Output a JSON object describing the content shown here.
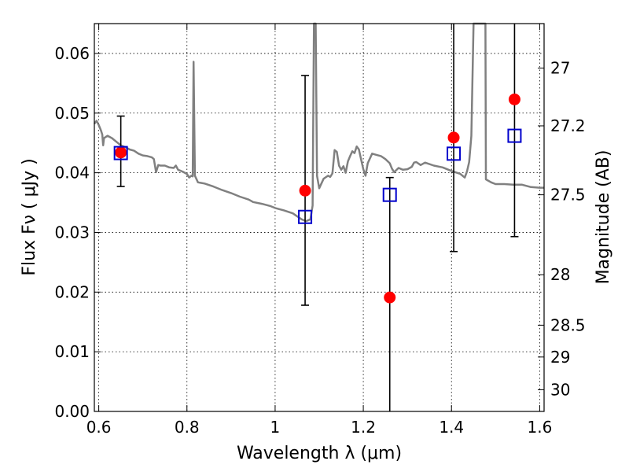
{
  "chart_data": {
    "type": "scatter",
    "xlabel": "Wavelength  λ (μm)",
    "ylabel": "Flux  Fν  ( μJy )",
    "y2label": "Magnitude (AB)",
    "xlim": [
      0.59,
      1.61
    ],
    "ylim": [
      0.0,
      0.065
    ],
    "grid": true,
    "x_ticks": [
      0.6,
      0.8,
      1.0,
      1.2,
      1.4,
      1.6
    ],
    "x_tick_labels": [
      "0.6",
      "0.8",
      "1",
      "1.2",
      "1.4",
      "1.6"
    ],
    "y_ticks": [
      0.0,
      0.01,
      0.02,
      0.03,
      0.04,
      0.05,
      0.06
    ],
    "y_tick_labels": [
      "0.00",
      "0.01",
      "0.02",
      "0.03",
      "0.04",
      "0.05",
      "0.06"
    ],
    "y2_ticks": [
      27,
      27.2,
      27.5,
      28,
      28.5,
      29,
      30
    ],
    "y2_tick_labels": [
      "27",
      "27.2",
      "27.5",
      "28",
      "28.5",
      "29",
      "30"
    ],
    "colors": {
      "model": "#808080",
      "observed": "#ff0000",
      "synthetic": "#0000cc",
      "errorbar": "#000000"
    },
    "model_spectrum": [
      [
        0.59,
        0.0482
      ],
      [
        0.595,
        0.0487
      ],
      [
        0.6,
        0.048
      ],
      [
        0.605,
        0.0471
      ],
      [
        0.608,
        0.0464
      ],
      [
        0.61,
        0.0446
      ],
      [
        0.612,
        0.0458
      ],
      [
        0.62,
        0.0462
      ],
      [
        0.63,
        0.0458
      ],
      [
        0.64,
        0.0452
      ],
      [
        0.65,
        0.0446
      ],
      [
        0.66,
        0.0443
      ],
      [
        0.67,
        0.0439
      ],
      [
        0.68,
        0.0437
      ],
      [
        0.69,
        0.0432
      ],
      [
        0.7,
        0.0429
      ],
      [
        0.71,
        0.0428
      ],
      [
        0.72,
        0.0426
      ],
      [
        0.725,
        0.0423
      ],
      [
        0.73,
        0.0401
      ],
      [
        0.735,
        0.0413
      ],
      [
        0.74,
        0.0412
      ],
      [
        0.75,
        0.0412
      ],
      [
        0.76,
        0.0409
      ],
      [
        0.77,
        0.0408
      ],
      [
        0.775,
        0.0412
      ],
      [
        0.78,
        0.0405
      ],
      [
        0.79,
        0.0402
      ],
      [
        0.8,
        0.0398
      ],
      [
        0.805,
        0.0392
      ],
      [
        0.81,
        0.0395
      ],
      [
        0.813,
        0.0394
      ],
      [
        0.815,
        0.0586
      ],
      [
        0.818,
        0.0395
      ],
      [
        0.825,
        0.0384
      ],
      [
        0.84,
        0.0382
      ],
      [
        0.86,
        0.0377
      ],
      [
        0.88,
        0.0371
      ],
      [
        0.9,
        0.0366
      ],
      [
        0.92,
        0.036
      ],
      [
        0.94,
        0.0355
      ],
      [
        0.95,
        0.0351
      ],
      [
        0.97,
        0.0348
      ],
      [
        0.99,
        0.0344
      ],
      [
        1.0,
        0.0341
      ],
      [
        1.02,
        0.0337
      ],
      [
        1.04,
        0.0332
      ],
      [
        1.06,
        0.0322
      ],
      [
        1.07,
        0.0319
      ],
      [
        1.08,
        0.0322
      ],
      [
        1.085,
        0.0345
      ],
      [
        1.088,
        0.065
      ],
      [
        1.092,
        0.065
      ],
      [
        1.095,
        0.0395
      ],
      [
        1.1,
        0.0374
      ],
      [
        1.11,
        0.039
      ],
      [
        1.12,
        0.0395
      ],
      [
        1.125,
        0.0393
      ],
      [
        1.13,
        0.0399
      ],
      [
        1.135,
        0.0438
      ],
      [
        1.14,
        0.0435
      ],
      [
        1.145,
        0.0412
      ],
      [
        1.15,
        0.0405
      ],
      [
        1.155,
        0.0411
      ],
      [
        1.16,
        0.04
      ],
      [
        1.165,
        0.0419
      ],
      [
        1.17,
        0.0428
      ],
      [
        1.175,
        0.0436
      ],
      [
        1.18,
        0.0433
      ],
      [
        1.185,
        0.0444
      ],
      [
        1.19,
        0.0439
      ],
      [
        1.195,
        0.0422
      ],
      [
        1.2,
        0.0406
      ],
      [
        1.205,
        0.0395
      ],
      [
        1.21,
        0.0416
      ],
      [
        1.22,
        0.0432
      ],
      [
        1.23,
        0.043
      ],
      [
        1.24,
        0.0428
      ],
      [
        1.25,
        0.0423
      ],
      [
        1.26,
        0.0416
      ],
      [
        1.265,
        0.0407
      ],
      [
        1.27,
        0.0401
      ],
      [
        1.28,
        0.0408
      ],
      [
        1.29,
        0.0405
      ],
      [
        1.3,
        0.0406
      ],
      [
        1.31,
        0.041
      ],
      [
        1.315,
        0.0417
      ],
      [
        1.32,
        0.0418
      ],
      [
        1.33,
        0.0413
      ],
      [
        1.34,
        0.0417
      ],
      [
        1.36,
        0.0412
      ],
      [
        1.38,
        0.0409
      ],
      [
        1.4,
        0.0403
      ],
      [
        1.42,
        0.0398
      ],
      [
        1.43,
        0.0392
      ],
      [
        1.435,
        0.0402
      ],
      [
        1.44,
        0.0418
      ],
      [
        1.445,
        0.0462
      ],
      [
        1.45,
        0.065
      ],
      [
        1.477,
        0.065
      ],
      [
        1.478,
        0.0389
      ],
      [
        1.49,
        0.0384
      ],
      [
        1.5,
        0.0381
      ],
      [
        1.52,
        0.0381
      ],
      [
        1.54,
        0.038
      ],
      [
        1.56,
        0.038
      ],
      [
        1.58,
        0.0376
      ],
      [
        1.6,
        0.0375
      ],
      [
        1.61,
        0.0375
      ]
    ],
    "observed": [
      {
        "x": 0.65,
        "y": 0.0434,
        "yerr_low": 0.0377,
        "yerr_high": 0.0495
      },
      {
        "x": 1.068,
        "y": 0.037,
        "yerr_low": 0.0178,
        "yerr_high": 0.0563
      },
      {
        "x": 1.26,
        "y": 0.0191,
        "yerr_low": 0.0,
        "yerr_high": 0.0392
      },
      {
        "x": 1.405,
        "y": 0.0459,
        "yerr_low": 0.0268,
        "yerr_high": 0.065
      },
      {
        "x": 1.543,
        "y": 0.0523,
        "yerr_low": 0.0293,
        "yerr_high": 0.065
      }
    ],
    "synthetic": [
      {
        "x": 0.65,
        "y": 0.0433
      },
      {
        "x": 1.068,
        "y": 0.0326
      },
      {
        "x": 1.26,
        "y": 0.0363
      },
      {
        "x": 1.405,
        "y": 0.0432
      },
      {
        "x": 1.543,
        "y": 0.0462
      }
    ]
  }
}
